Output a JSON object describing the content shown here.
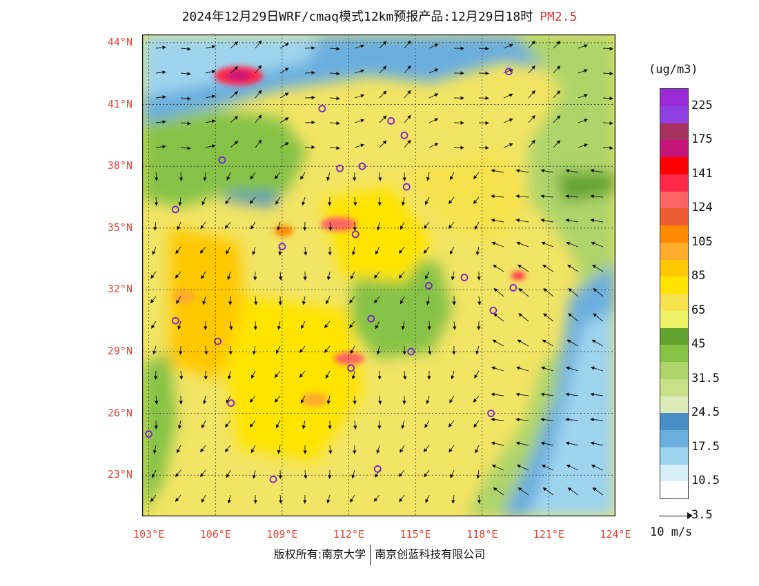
{
  "title": {
    "text": "2024年12月29日WRF/cmaq模式12km预报产品:12月29日18时",
    "pollutant": "PM2.5",
    "pollutant_color": "#e23a3a"
  },
  "axes": {
    "lat_labels": [
      "44°N",
      "41°N",
      "38°N",
      "35°N",
      "32°N",
      "29°N",
      "26°N",
      "23°N"
    ],
    "lon_labels": [
      "103°E",
      "106°E",
      "109°E",
      "112°E",
      "115°E",
      "118°E",
      "121°E",
      "124°E"
    ],
    "label_color": "#e2473b"
  },
  "colorbar": {
    "unit": "(ug/m3)",
    "colors": [
      "#9b2bd6",
      "#8f3fe0",
      "#a8325e",
      "#c4147a",
      "#ff0000",
      "#ff2a4a",
      "#ff6464",
      "#ee5a32",
      "#ff8a00",
      "#ffac2c",
      "#ffc800",
      "#ffe400",
      "#f5e24e",
      "#eef266",
      "#63a22e",
      "#86c246",
      "#aed46a",
      "#c8e088",
      "#dcebb8",
      "#4a8ec6",
      "#6aaede",
      "#9ed4ee",
      "#d8eef8",
      "#ffffff"
    ],
    "labels": [
      "225",
      "175",
      "141",
      "124",
      "105",
      "85",
      "65",
      "45",
      "31.5",
      "24.5",
      "17.5",
      "10.5",
      "3.5"
    ]
  },
  "wind_scale": {
    "label": "10 m/s"
  },
  "cities": [
    {
      "lon": 119.2,
      "lat": 42.6
    },
    {
      "lon": 110.8,
      "lat": 40.8
    },
    {
      "lon": 113.9,
      "lat": 40.2
    },
    {
      "lon": 114.5,
      "lat": 39.5
    },
    {
      "lon": 106.3,
      "lat": 38.3
    },
    {
      "lon": 111.6,
      "lat": 37.9
    },
    {
      "lon": 112.6,
      "lat": 38.0
    },
    {
      "lon": 114.6,
      "lat": 37.0
    },
    {
      "lon": 104.2,
      "lat": 35.9
    },
    {
      "lon": 112.3,
      "lat": 34.7
    },
    {
      "lon": 109.0,
      "lat": 34.1
    },
    {
      "lon": 117.2,
      "lat": 32.6
    },
    {
      "lon": 115.6,
      "lat": 32.2
    },
    {
      "lon": 119.4,
      "lat": 32.1
    },
    {
      "lon": 118.5,
      "lat": 31.0
    },
    {
      "lon": 104.2,
      "lat": 30.5
    },
    {
      "lon": 113.0,
      "lat": 30.6
    },
    {
      "lon": 106.1,
      "lat": 29.5
    },
    {
      "lon": 114.8,
      "lat": 29.0
    },
    {
      "lon": 112.1,
      "lat": 28.2
    },
    {
      "lon": 106.7,
      "lat": 26.5
    },
    {
      "lon": 118.4,
      "lat": 26.0
    },
    {
      "lon": 103.0,
      "lat": 25.0
    },
    {
      "lon": 113.3,
      "lat": 23.3
    },
    {
      "lon": 108.6,
      "lat": 22.8
    }
  ],
  "footer": {
    "left": "版权所有:南京大学",
    "right": "南京创蓝科技有限公司"
  }
}
